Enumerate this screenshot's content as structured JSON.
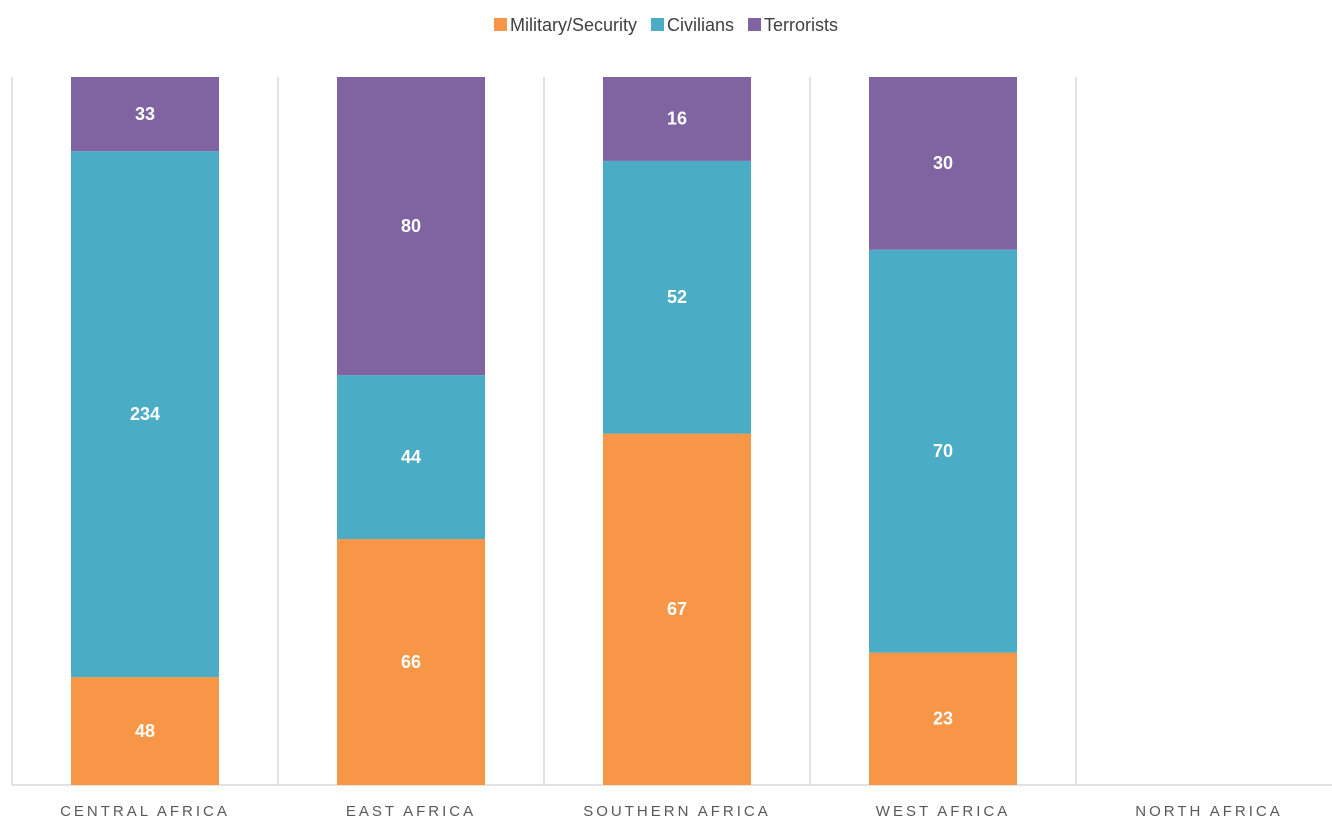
{
  "chart_data": {
    "type": "bar",
    "stacking": "percent",
    "categories": [
      "CENTRAL AFRICA",
      "EAST AFRICA",
      "SOUTHERN AFRICA",
      "WEST AFRICA",
      "NORTH AFRICA"
    ],
    "series": [
      {
        "name": "Military/Security",
        "color": "#F79646",
        "values": [
          48,
          66,
          67,
          23,
          null
        ]
      },
      {
        "name": "Civilians",
        "color": "#4BACC6",
        "values": [
          234,
          44,
          52,
          70,
          null
        ]
      },
      {
        "name": "Terrorists",
        "color": "#8064A2",
        "values": [
          33,
          80,
          16,
          30,
          null
        ]
      }
    ],
    "legend": "top"
  }
}
